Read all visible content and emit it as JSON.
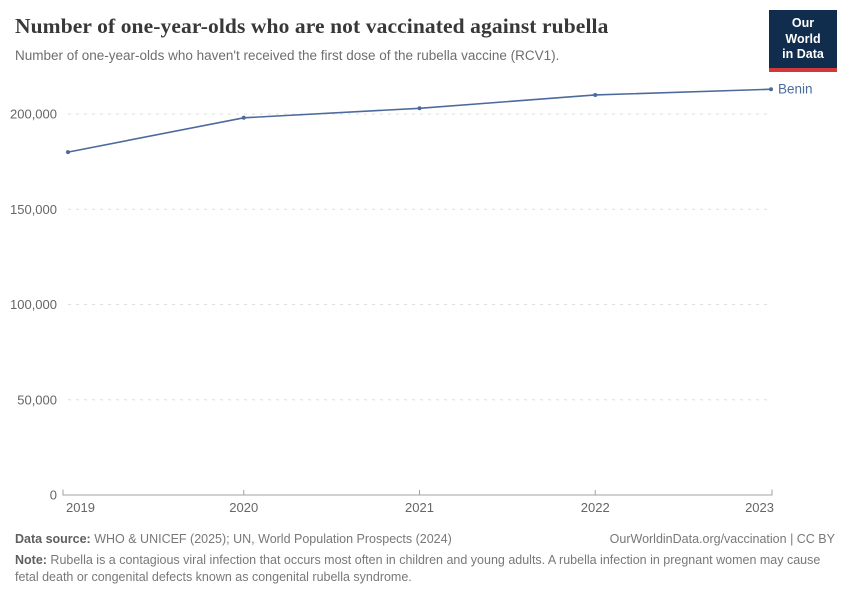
{
  "header": {
    "title": "Number of one-year-olds who are not vaccinated against rubella",
    "subtitle": "Number of one-year-olds who haven't received the first dose of the rubella vaccine (RCV1)."
  },
  "logo": {
    "line1": "Our World",
    "line2": "in Data"
  },
  "chart_data": {
    "type": "line",
    "title": "Number of one-year-olds who are not vaccinated against rubella",
    "x": [
      2019,
      2020,
      2021,
      2022,
      2023
    ],
    "x_tick_labels": [
      "2019",
      "2020",
      "2021",
      "2022",
      "2023"
    ],
    "series": [
      {
        "name": "Benin",
        "values": [
          180000,
          198000,
          203000,
          210000,
          213000
        ]
      }
    ],
    "ylim": [
      0,
      215000
    ],
    "yticks": [
      0,
      50000,
      100000,
      150000,
      200000
    ],
    "ytick_labels": [
      "0",
      "50,000",
      "100,000",
      "150,000",
      "200,000"
    ],
    "xlabel": "",
    "ylabel": "",
    "grid": "horizontal-dashed",
    "legend": "entity-label-at-line-end"
  },
  "footer": {
    "source_label": "Data source:",
    "source_text": " WHO & UNICEF (2025); UN, World Population Prospects (2024)",
    "license_text": "OurWorldinData.org/vaccination | CC BY",
    "note_label": "Note:",
    "note_text": " Rubella is a contagious viral infection that occurs most often in children and young adults. A rubella infection in pregnant women may cause fetal death or congenital defects known as congenital rubella syndrome."
  },
  "colors": {
    "line": "#4c6a9c",
    "entity_label": "#4c6a9c",
    "gridline": "#dedede",
    "axis": "#a3a3a3",
    "tick_label": "#666666",
    "logo_bg": "#102d4e",
    "logo_accent": "#d0383a"
  }
}
